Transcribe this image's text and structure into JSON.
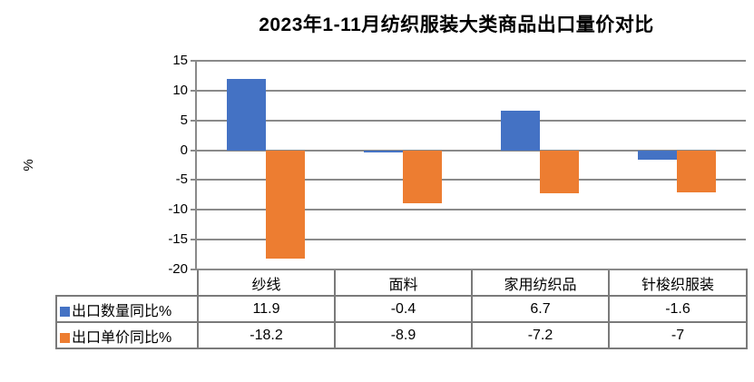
{
  "chart_data": {
    "type": "bar",
    "title": "2023年1-11月纺织服装大类商品出口量价对比",
    "ylabel": "%",
    "ylim": [
      -20,
      15
    ],
    "yticks": [
      15,
      10,
      5,
      0,
      -5,
      -10,
      -15,
      -20
    ],
    "grid": true,
    "legend_position": "table-rows-left",
    "categories": [
      "纱线",
      "面料",
      "家用纺织品",
      "针梭织服装"
    ],
    "series": [
      {
        "name": "出口数量同比%",
        "color": "#4472C4",
        "values": [
          11.9,
          -0.4,
          6.7,
          -1.6
        ]
      },
      {
        "name": "出口单价同比%",
        "color": "#ED7D31",
        "values": [
          -18.2,
          -8.9,
          -7.2,
          -7
        ]
      }
    ],
    "colors": {
      "gridline": "#8A8A8A",
      "axis": "#8A8A8A",
      "table_border": "#7A7A7A",
      "text": "#000000",
      "background": "#FFFFFF"
    }
  }
}
